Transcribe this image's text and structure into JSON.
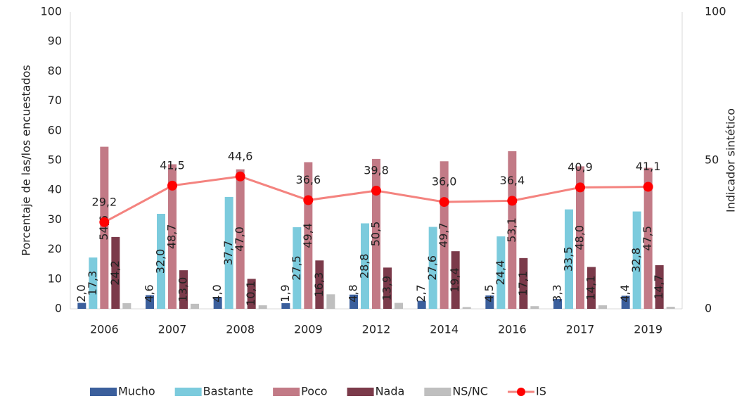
{
  "chart_data": {
    "type": "bar",
    "categories": [
      "2006",
      "2007",
      "2008",
      "2009",
      "2012",
      "2014",
      "2016",
      "2017",
      "2019"
    ],
    "ylabel": "Porcentaje de  las/los encuestados",
    "y2label": "Indicador sintético",
    "ylim": [
      0,
      100
    ],
    "yticks": [
      0,
      10,
      20,
      30,
      40,
      50,
      60,
      70,
      80,
      90,
      100
    ],
    "y2lim": [
      0,
      100
    ],
    "y2ticks": [
      0,
      50,
      100
    ],
    "grid": false,
    "legend": "bottom",
    "series": [
      {
        "name": "Mucho",
        "color": "#3b5f9c",
        "values": [
          2.0,
          4.6,
          4.0,
          1.9,
          4.8,
          2.7,
          4.5,
          3.3,
          4.4
        ],
        "value_labels": [
          "2,0",
          "4,6",
          "4,0",
          "1,9",
          "4,8",
          "2,7",
          "4,5",
          "3,3",
          "4,4"
        ]
      },
      {
        "name": "Bastante",
        "color": "#7ccbdd",
        "values": [
          17.3,
          32.0,
          37.7,
          27.5,
          28.8,
          27.6,
          24.4,
          33.5,
          32.8
        ],
        "value_labels": [
          "17,3",
          "32,0",
          "37,7",
          "27,5",
          "28,8",
          "27,6",
          "24,4",
          "33,5",
          "32,8"
        ]
      },
      {
        "name": "Poco",
        "color": "#c27a86",
        "values": [
          54.6,
          48.7,
          47.0,
          49.4,
          50.5,
          49.7,
          53.1,
          48.0,
          47.5
        ],
        "value_labels": [
          "54,6",
          "48,7",
          "47,0",
          "49,4",
          "50,5",
          "49,7",
          "53,1",
          "48,0",
          "47,5"
        ]
      },
      {
        "name": "Nada",
        "color": "#7b3a4a",
        "values": [
          24.2,
          13.0,
          10.1,
          16.3,
          13.9,
          19.4,
          17.1,
          14.1,
          14.7
        ],
        "value_labels": [
          "24,2",
          "13,0",
          "10,1",
          "16,3",
          "13,9",
          "19,4",
          "17,1",
          "14,1",
          "14,7"
        ]
      },
      {
        "name": "NS/NC",
        "color": "#bfbfbf",
        "values": [
          1.9,
          1.7,
          1.2,
          4.9,
          2.0,
          0.6,
          0.9,
          1.2,
          0.7
        ]
      },
      {
        "name": "IS",
        "type": "line",
        "axis": "y2",
        "color": "#f4837f",
        "marker_color": "#ff0000",
        "values": [
          29.2,
          41.5,
          44.6,
          36.6,
          39.8,
          36.0,
          36.4,
          40.9,
          41.1
        ],
        "value_labels": [
          "29,2",
          "41,5",
          "44,6",
          "36,6",
          "39,8",
          "36,0",
          "36,4",
          "40,9",
          "41,1"
        ]
      }
    ]
  }
}
